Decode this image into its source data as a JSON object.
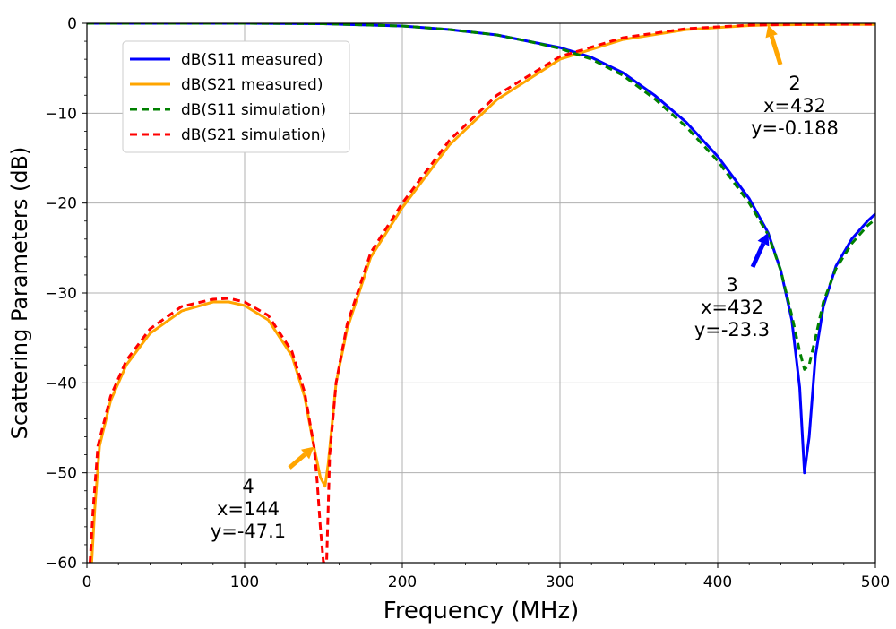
{
  "chart_data": {
    "type": "line",
    "xlabel": "Frequency (MHz)",
    "ylabel": "Scattering Parameters (dB)",
    "xlim": [
      0,
      500
    ],
    "ylim": [
      -60,
      0
    ],
    "xticks": [
      0,
      100,
      200,
      300,
      400,
      500
    ],
    "yticks": [
      0,
      -10,
      -20,
      -30,
      -40,
      -50,
      -60
    ],
    "xtick_labels": [
      "0",
      "100",
      "200",
      "300",
      "400",
      "500"
    ],
    "ytick_labels": [
      "0",
      "−10",
      "−20",
      "−30",
      "−40",
      "−50",
      "−60"
    ],
    "grid": true,
    "legend_position": "top-left",
    "series": [
      {
        "name": "dB(S11 measured)",
        "color": "#0000ff",
        "style": "solid",
        "x": [
          0,
          50,
          100,
          150,
          200,
          230,
          260,
          280,
          300,
          320,
          340,
          360,
          380,
          400,
          420,
          432,
          440,
          447,
          452,
          455,
          458,
          462,
          467,
          475,
          485,
          495,
          500
        ],
        "y": [
          0,
          0,
          0,
          -0.05,
          -0.3,
          -0.7,
          -1.3,
          -2.0,
          -2.7,
          -3.8,
          -5.5,
          -8.0,
          -11.0,
          -14.8,
          -19.5,
          -23.3,
          -27.5,
          -33.0,
          -40.5,
          -50.0,
          -46.0,
          -37.0,
          -31.5,
          -27.0,
          -24.0,
          -22.0,
          -21.2
        ]
      },
      {
        "name": "dB(S21 measured)",
        "color": "#ffa500",
        "style": "solid",
        "x": [
          3,
          5,
          8,
          15,
          25,
          40,
          60,
          80,
          90,
          100,
          115,
          130,
          138,
          144,
          148,
          151,
          153,
          158,
          165,
          180,
          200,
          230,
          260,
          300,
          340,
          380,
          420,
          432,
          450,
          480,
          500
        ],
        "y": [
          -60,
          -54,
          -47,
          -42,
          -38,
          -34.5,
          -32,
          -31.0,
          -31.0,
          -31.4,
          -33.0,
          -37.0,
          -41.5,
          -47.1,
          -50.5,
          -51.5,
          -49,
          -40,
          -34,
          -26,
          -20.5,
          -13.5,
          -8.5,
          -4.0,
          -1.8,
          -0.7,
          -0.25,
          -0.188,
          -0.15,
          -0.12,
          -0.12
        ]
      },
      {
        "name": "dB(S11 simulation)",
        "color": "#008000",
        "style": "dashed",
        "x": [
          0,
          50,
          100,
          150,
          200,
          230,
          260,
          280,
          300,
          320,
          340,
          360,
          380,
          400,
          420,
          432,
          440,
          447,
          452,
          455,
          458,
          462,
          467,
          475,
          485,
          495,
          500
        ],
        "y": [
          0,
          0,
          0,
          -0.05,
          -0.3,
          -0.7,
          -1.3,
          -2.0,
          -2.8,
          -4.0,
          -5.8,
          -8.4,
          -11.5,
          -15.3,
          -20.0,
          -23.5,
          -27.5,
          -32.5,
          -36.5,
          -38.5,
          -38.0,
          -35.0,
          -31.0,
          -27.3,
          -24.5,
          -22.5,
          -21.8
        ]
      },
      {
        "name": "dB(S21 simulation)",
        "color": "#ff0000",
        "style": "dashed",
        "x": [
          2,
          4,
          7,
          15,
          25,
          40,
          60,
          80,
          90,
          100,
          115,
          130,
          138,
          144,
          146,
          148,
          150,
          152,
          154,
          158,
          165,
          180,
          200,
          230,
          260,
          300,
          340,
          380,
          420,
          450,
          480,
          500
        ],
        "y": [
          -60,
          -54,
          -47,
          -41.5,
          -37.5,
          -34,
          -31.5,
          -30.7,
          -30.6,
          -31.0,
          -32.5,
          -36.5,
          -41.0,
          -47.0,
          -51.0,
          -56.0,
          -60,
          -60,
          -48,
          -40,
          -33.5,
          -25.5,
          -20.0,
          -13.0,
          -8.0,
          -3.7,
          -1.6,
          -0.6,
          -0.2,
          -0.12,
          -0.1,
          -0.1
        ]
      }
    ],
    "annotations": [
      {
        "marker": "2",
        "x_text": "x=432",
        "y_text": "y=-0.188",
        "px": 432,
        "py": -0.188,
        "color": "#ffa500"
      },
      {
        "marker": "3",
        "x_text": "x=432",
        "y_text": "y=-23.3",
        "px": 432,
        "py": -23.3,
        "color": "#0000ff"
      },
      {
        "marker": "4",
        "x_text": "x=144",
        "y_text": "y=-47.1",
        "px": 144,
        "py": -47.1,
        "color": "#ffa500"
      }
    ]
  }
}
